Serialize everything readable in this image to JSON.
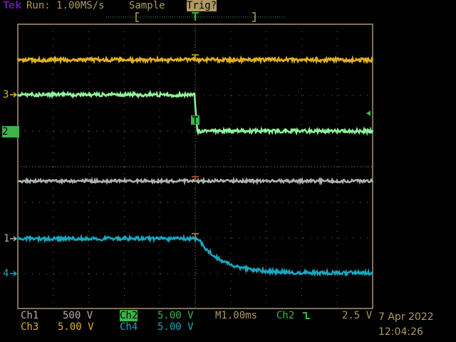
{
  "header": {
    "brand": "Tek",
    "run_status": "Run: 1.00MS/s",
    "acq_mode": "Sample",
    "trigger_status": "Trig?"
  },
  "colors": {
    "brand": "#5a1aa0",
    "text": "#b09a60",
    "ch1": "#b0b0b0",
    "ch2": "#8ff59a",
    "ch2_label_bg": "#3cb44a",
    "ch3": "#e0b020",
    "ch4": "#18a8c0",
    "graticule": "#a89878"
  },
  "markers": {
    "ch1": "1",
    "ch2": "2",
    "ch3": "3",
    "ch4": "4",
    "trigger": "T"
  },
  "status": {
    "ch1_label": "Ch1",
    "ch1_scale": "500 V",
    "ch2_label": "Ch2",
    "ch2_scale": "5.00 V",
    "ch3_label": "Ch3",
    "ch3_scale": "5.00 V",
    "ch4_label": "Ch4",
    "ch4_scale": "5.00 V",
    "timebase": "M1.00ms",
    "trigger_source": "Ch2",
    "trigger_slope_icon": "falling-edge-icon",
    "trigger_level": "2.5 V",
    "date": "7 Apr 2022",
    "time": "12:04:26"
  }
}
